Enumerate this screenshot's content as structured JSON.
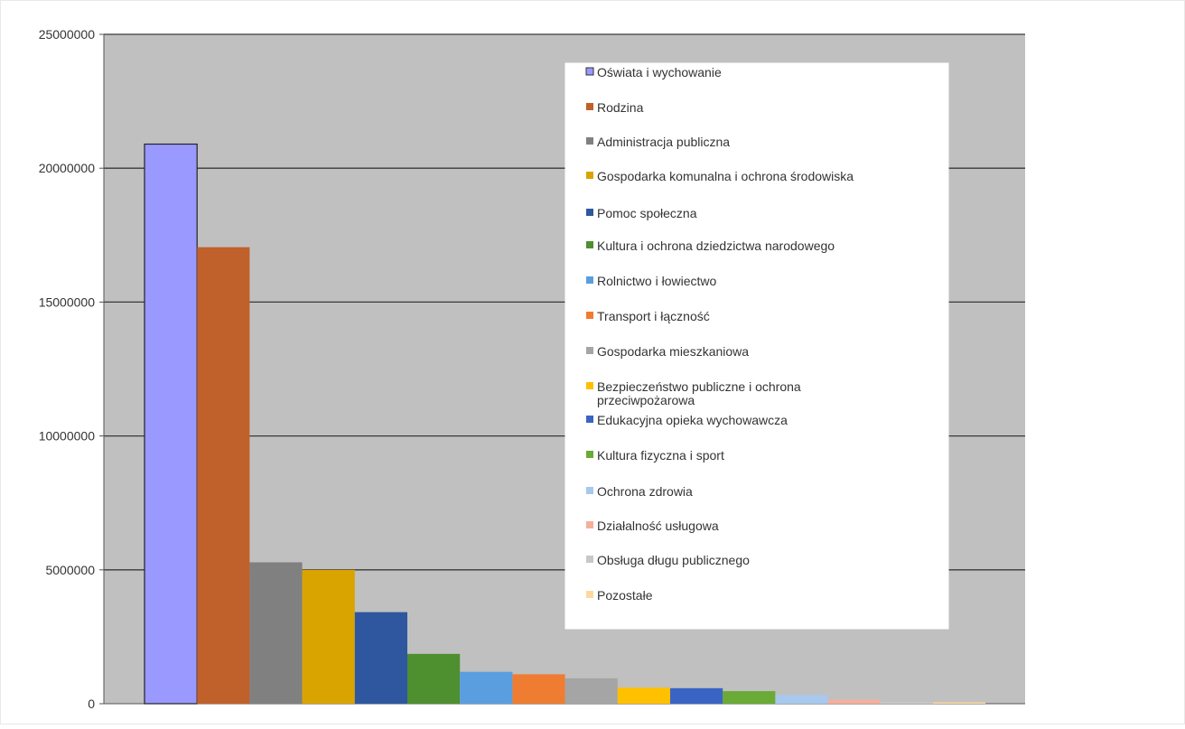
{
  "chart_data": {
    "type": "bar",
    "title": "",
    "xlabel": "",
    "ylabel": "",
    "ylim": [
      0,
      25000000
    ],
    "yticks": [
      0,
      5000000,
      10000000,
      15000000,
      20000000,
      25000000
    ],
    "ytick_labels": [
      "0",
      "5000000",
      "10000000",
      "15000000",
      "20000000",
      "25000000"
    ],
    "grid": true,
    "plot_background": "#c0c0c0",
    "legend_position": "top-right",
    "series": [
      {
        "name": "Oświata i wychowanie",
        "value": 20900000,
        "color": "#9999ff"
      },
      {
        "name": "Rodzina",
        "value": 17050000,
        "color": "#c0602a"
      },
      {
        "name": "Administracja publiczna",
        "value": 5280000,
        "color": "#808080"
      },
      {
        "name": "Gospodarka komunalna i ochrona środowiska",
        "value": 5000000,
        "color": "#d9a400"
      },
      {
        "name": "Pomoc społeczna",
        "value": 3420000,
        "color": "#2f57a0"
      },
      {
        "name": "Kultura i ochrona dziedzictwa narodowego",
        "value": 1860000,
        "color": "#4e8f30"
      },
      {
        "name": "Rolnictwo i łowiectwo",
        "value": 1190000,
        "color": "#5a9ee0"
      },
      {
        "name": "Transport i łączność",
        "value": 1100000,
        "color": "#ee7d31"
      },
      {
        "name": "Gospodarka mieszkaniowa",
        "value": 950000,
        "color": "#a5a5a5"
      },
      {
        "name": "Bezpieczeństwo publiczne i ochrona przeciwpożarowa",
        "value": 600000,
        "color": "#ffc000"
      },
      {
        "name": "Edukacyjna opieka wychowawcza",
        "value": 580000,
        "color": "#3a64c4"
      },
      {
        "name": "Kultura fizyczna i sport",
        "value": 470000,
        "color": "#6aaa36"
      },
      {
        "name": "Ochrona zdrowia",
        "value": 330000,
        "color": "#a8c8ee"
      },
      {
        "name": "Działalność usługowa",
        "value": 150000,
        "color": "#f4b09a"
      },
      {
        "name": "Obsługa długu publicznego",
        "value": 60000,
        "color": "#c8c8c8"
      },
      {
        "name": "Pozostałe",
        "value": 50000,
        "color": "#ffd8a0"
      }
    ]
  }
}
